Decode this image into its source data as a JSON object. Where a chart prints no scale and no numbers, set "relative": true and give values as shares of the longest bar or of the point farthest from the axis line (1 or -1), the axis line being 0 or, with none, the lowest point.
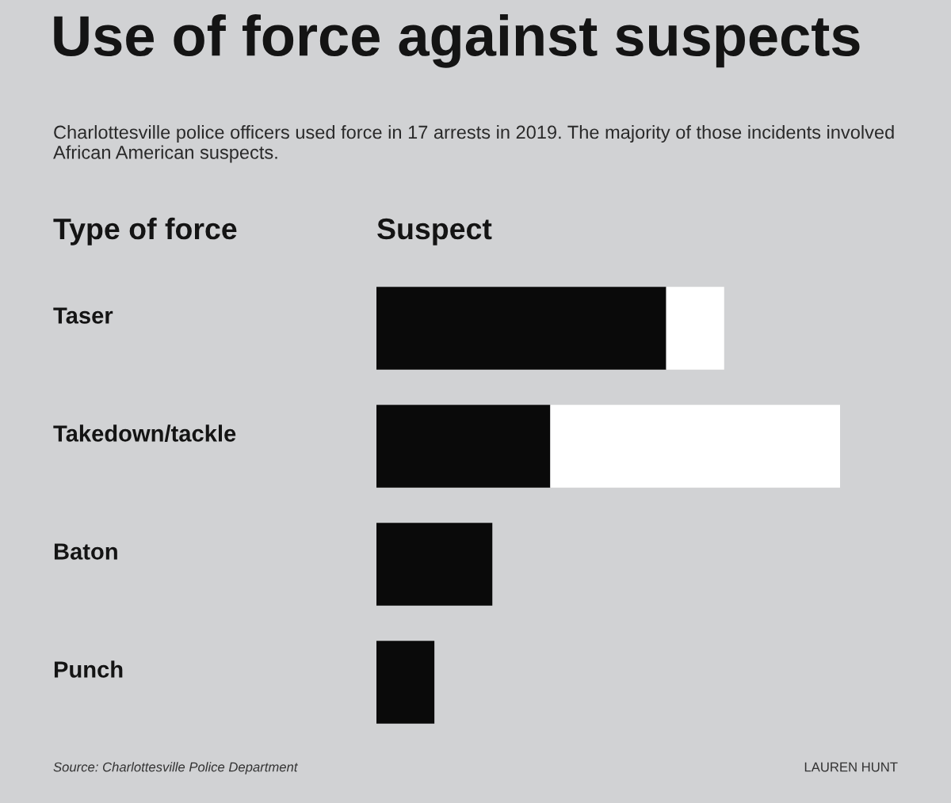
{
  "chart_data": {
    "type": "bar",
    "orientation": "horizontal",
    "stacked": true,
    "relative": true,
    "title": "Use of force against suspects",
    "subtitle": "Charlottesville police officers used force in 17 arrests in 2019. The majority of those incidents involved African American suspects.",
    "ylabel": "Type of force",
    "xlabel": "Suspect",
    "categories": [
      "Taser",
      "Takedown/tackle",
      "Baton",
      "Punch"
    ],
    "series": [
      {
        "color": "#0a0a0a",
        "values": [
          0.625,
          0.375,
          0.25,
          0.125
        ]
      },
      {
        "color": "#ffffff",
        "values": [
          0.125,
          0.625,
          null,
          null
        ]
      }
    ],
    "annotations": [
      "Source: Charlottesville Police Department",
      "LAUREN HUNT"
    ]
  }
}
